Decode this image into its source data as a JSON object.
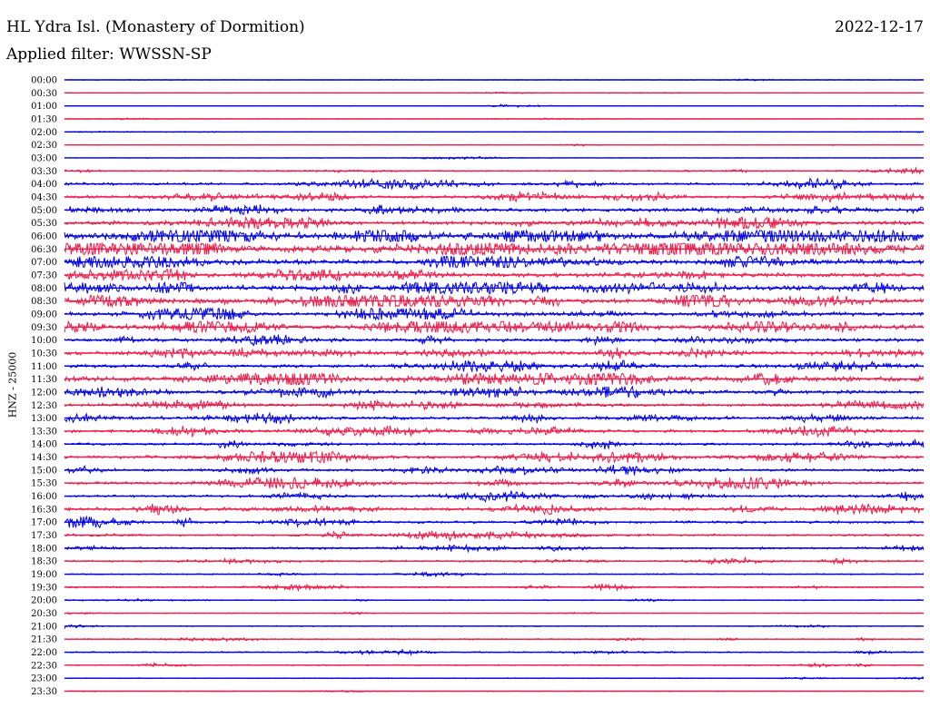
{
  "header": {
    "station": "HL Ydra Isl. (Monastery of Dormition)",
    "date": "2022-12-17",
    "filter": "Applied filter: WWSSN-SP"
  },
  "chart_data": {
    "type": "line",
    "kind": "helicorder",
    "ylabel": "HNZ - 25000",
    "row_interval_minutes": 30,
    "categories": [
      "00:00",
      "00:30",
      "01:00",
      "01:30",
      "02:00",
      "02:30",
      "03:00",
      "03:30",
      "04:00",
      "04:30",
      "05:00",
      "05:30",
      "06:00",
      "06:30",
      "07:00",
      "07:30",
      "08:00",
      "08:30",
      "09:00",
      "09:30",
      "10:00",
      "10:30",
      "11:00",
      "11:30",
      "12:00",
      "12:30",
      "13:00",
      "13:30",
      "14:00",
      "14:30",
      "15:00",
      "15:30",
      "16:00",
      "16:30",
      "17:00",
      "17:30",
      "18:00",
      "18:30",
      "19:00",
      "19:30",
      "20:00",
      "20:30",
      "21:00",
      "21:30",
      "22:00",
      "22:30",
      "23:00",
      "23:30"
    ],
    "colors": [
      "#0000e6",
      "#ee1c4a"
    ],
    "relative_noise_level": [
      0.3,
      0.3,
      0.25,
      0.3,
      0.3,
      0.35,
      0.3,
      0.6,
      1.2,
      1.3,
      1.5,
      1.8,
      3.2,
      3.6,
      2.4,
      2.0,
      2.6,
      2.4,
      1.8,
      2.2,
      1.5,
      1.7,
      1.6,
      2.4,
      1.6,
      1.3,
      1.4,
      1.3,
      1.2,
      1.5,
      1.3,
      1.4,
      1.1,
      1.5,
      1.2,
      1.0,
      1.0,
      0.9,
      0.6,
      0.8,
      0.5,
      0.4,
      0.5,
      0.6,
      0.6,
      0.6,
      0.4,
      0.3
    ]
  }
}
